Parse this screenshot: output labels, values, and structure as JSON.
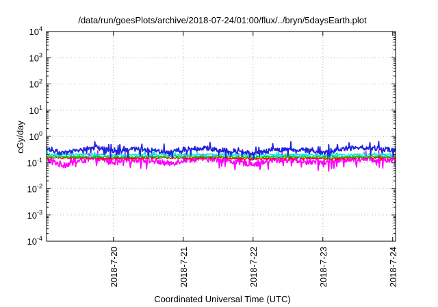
{
  "chart_data": {
    "type": "line",
    "title": "/data/run/goesPlots/archive/2018-07-24/01:00/flux/../bryn/5daysEarth.plot",
    "xlabel": "Coordinated Universal Time (UTC)",
    "ylabel": "cGy/day",
    "yscale": "log",
    "ylim": [
      0.0001,
      10000
    ],
    "xlim": [
      "2018-07-19 01:00",
      "2018-07-24 01:00"
    ],
    "grid": true,
    "legend": "none",
    "y_ticks": [
      {
        "base": "10",
        "exp": "-4",
        "value": 0.0001
      },
      {
        "base": "10",
        "exp": "-3",
        "value": 0.001
      },
      {
        "base": "10",
        "exp": "-2",
        "value": 0.01
      },
      {
        "base": "10",
        "exp": "-1",
        "value": 0.1
      },
      {
        "base": "10",
        "exp": "0",
        "value": 1
      },
      {
        "base": "10",
        "exp": "1",
        "value": 10
      },
      {
        "base": "10",
        "exp": "2",
        "value": 100
      },
      {
        "base": "10",
        "exp": "3",
        "value": 1000
      },
      {
        "base": "10",
        "exp": "4",
        "value": 10000
      }
    ],
    "x_ticks": [
      {
        "label": "2018-7-20",
        "value": "2018-07-20 00:00"
      },
      {
        "label": "2018-7-21",
        "value": "2018-07-21 00:00"
      },
      {
        "label": "2018-7-22",
        "value": "2018-07-22 00:00"
      },
      {
        "label": "2018-7-23",
        "value": "2018-07-23 00:00"
      },
      {
        "label": "2018-7-24",
        "value": "2018-07-24 00:00"
      }
    ],
    "series": [
      {
        "color": "#ff00ff",
        "base": 0.13,
        "noise": 0.22,
        "points": [
          [
            "2018-07-19 01:00",
            0.13
          ],
          [
            "2018-07-19 07:00",
            0.08
          ],
          [
            "2018-07-19 13:00",
            0.12
          ],
          [
            "2018-07-19 19:00",
            0.14
          ],
          [
            "2018-07-20 01:00",
            0.1
          ],
          [
            "2018-07-20 07:00",
            0.13
          ],
          [
            "2018-07-20 13:00",
            0.12
          ],
          [
            "2018-07-20 19:00",
            0.09
          ],
          [
            "2018-07-21 01:00",
            0.13
          ],
          [
            "2018-07-21 07:00",
            0.14
          ],
          [
            "2018-07-21 13:00",
            0.13
          ],
          [
            "2018-07-21 19:00",
            0.1
          ],
          [
            "2018-07-22 01:00",
            0.09
          ],
          [
            "2018-07-22 07:00",
            0.12
          ],
          [
            "2018-07-22 13:00",
            0.13
          ],
          [
            "2018-07-22 19:00",
            0.11
          ],
          [
            "2018-07-23 01:00",
            0.1
          ],
          [
            "2018-07-23 07:00",
            0.13
          ],
          [
            "2018-07-23 13:00",
            0.14
          ],
          [
            "2018-07-23 19:00",
            0.13
          ],
          [
            "2018-07-24 01:00",
            0.13
          ]
        ]
      },
      {
        "color": "#ff0000",
        "base": 0.15,
        "noise": 0.06,
        "points": [
          [
            "2018-07-19 01:00",
            0.15
          ],
          [
            "2018-07-19 13:00",
            0.15
          ],
          [
            "2018-07-20 01:00",
            0.14
          ],
          [
            "2018-07-20 13:00",
            0.15
          ],
          [
            "2018-07-21 01:00",
            0.15
          ],
          [
            "2018-07-21 13:00",
            0.15
          ],
          [
            "2018-07-22 01:00",
            0.14
          ],
          [
            "2018-07-22 13:00",
            0.15
          ],
          [
            "2018-07-23 01:00",
            0.14
          ],
          [
            "2018-07-23 13:00",
            0.15
          ],
          [
            "2018-07-24 01:00",
            0.15
          ]
        ]
      },
      {
        "color": "#00cc00",
        "base": 0.17,
        "noise": 0.06,
        "points": [
          [
            "2018-07-19 01:00",
            0.17
          ],
          [
            "2018-07-19 13:00",
            0.17
          ],
          [
            "2018-07-20 01:00",
            0.16
          ],
          [
            "2018-07-20 13:00",
            0.17
          ],
          [
            "2018-07-21 01:00",
            0.17
          ],
          [
            "2018-07-21 13:00",
            0.17
          ],
          [
            "2018-07-22 01:00",
            0.16
          ],
          [
            "2018-07-22 13:00",
            0.17
          ],
          [
            "2018-07-23 01:00",
            0.16
          ],
          [
            "2018-07-23 13:00",
            0.17
          ],
          [
            "2018-07-24 01:00",
            0.17
          ]
        ]
      },
      {
        "color": "#00e5e5",
        "base": 0.2,
        "noise": 0.08,
        "points": [
          [
            "2018-07-19 01:00",
            0.2
          ],
          [
            "2018-07-19 13:00",
            0.2
          ],
          [
            "2018-07-20 01:00",
            0.19
          ],
          [
            "2018-07-20 13:00",
            0.2
          ],
          [
            "2018-07-21 01:00",
            0.2
          ],
          [
            "2018-07-21 13:00",
            0.2
          ],
          [
            "2018-07-22 01:00",
            0.19
          ],
          [
            "2018-07-22 13:00",
            0.2
          ],
          [
            "2018-07-23 01:00",
            0.19
          ],
          [
            "2018-07-23 13:00",
            0.2
          ],
          [
            "2018-07-24 01:00",
            0.2
          ]
        ]
      },
      {
        "color": "#2222dd",
        "base": 0.3,
        "noise": 0.18,
        "points": [
          [
            "2018-07-19 01:00",
            0.35
          ],
          [
            "2018-07-19 07:00",
            0.22
          ],
          [
            "2018-07-19 13:00",
            0.32
          ],
          [
            "2018-07-19 19:00",
            0.38
          ],
          [
            "2018-07-20 01:00",
            0.24
          ],
          [
            "2018-07-20 07:00",
            0.33
          ],
          [
            "2018-07-20 13:00",
            0.3
          ],
          [
            "2018-07-20 19:00",
            0.26
          ],
          [
            "2018-07-21 01:00",
            0.33
          ],
          [
            "2018-07-21 07:00",
            0.36
          ],
          [
            "2018-07-21 13:00",
            0.3
          ],
          [
            "2018-07-21 19:00",
            0.27
          ],
          [
            "2018-07-22 01:00",
            0.22
          ],
          [
            "2018-07-22 07:00",
            0.3
          ],
          [
            "2018-07-22 13:00",
            0.32
          ],
          [
            "2018-07-22 19:00",
            0.28
          ],
          [
            "2018-07-23 01:00",
            0.24
          ],
          [
            "2018-07-23 07:00",
            0.34
          ],
          [
            "2018-07-23 13:00",
            0.38
          ],
          [
            "2018-07-23 19:00",
            0.33
          ],
          [
            "2018-07-24 01:00",
            0.31
          ]
        ]
      }
    ]
  }
}
